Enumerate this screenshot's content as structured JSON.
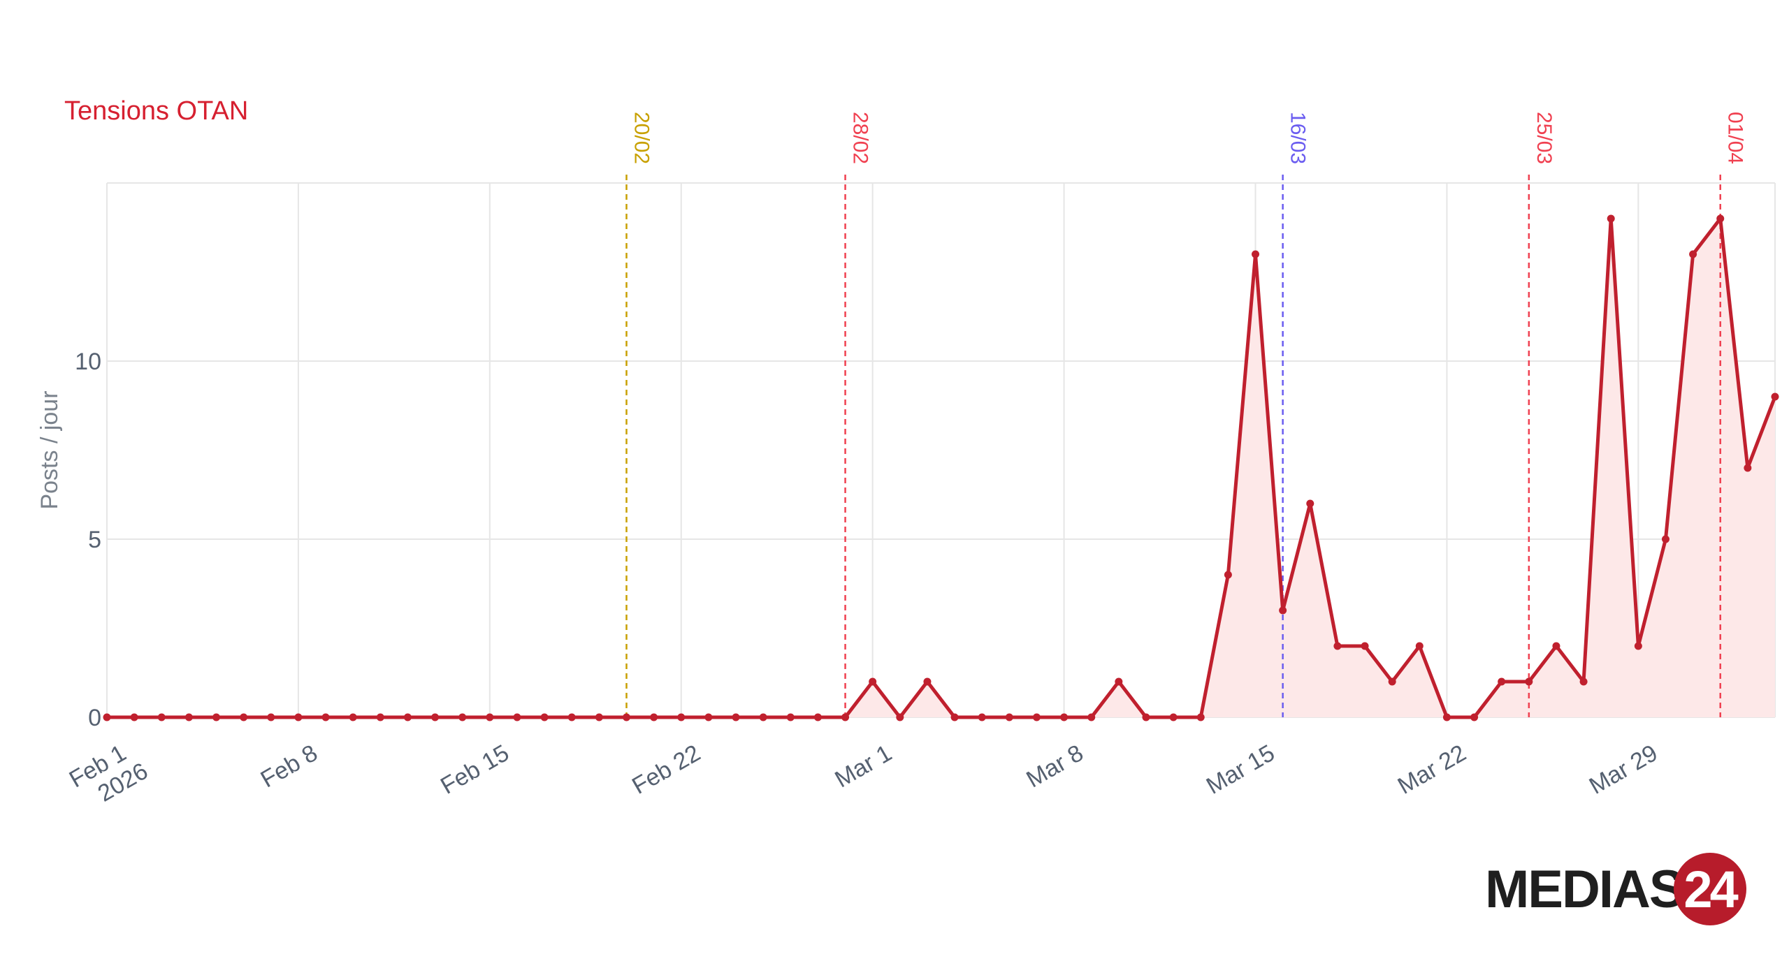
{
  "series_title": "Tensions OTAN",
  "logo": {
    "text": "MEDIAS",
    "number": "24"
  },
  "colors": {
    "line": "#c0202e",
    "fill": "#fde8e8",
    "grid": "#e6e6e6",
    "axis_text": "#556070",
    "title": "#d62030"
  },
  "chart_data": {
    "type": "line",
    "x_start": "2026-02-01",
    "x_end": "2026-04-03",
    "xlim": [
      "2026-02-01",
      "2026-04-03"
    ],
    "ylabel": "Posts / jour",
    "ylim": [
      0,
      15
    ],
    "yticks": [
      0,
      5,
      10
    ],
    "grid": true,
    "area_fill": true,
    "x_ticks": [
      {
        "date": "2026-02-01",
        "label": "Feb 1",
        "label2": "2026"
      },
      {
        "date": "2026-02-08",
        "label": "Feb 8",
        "label2": ""
      },
      {
        "date": "2026-02-15",
        "label": "Feb 15",
        "label2": ""
      },
      {
        "date": "2026-02-22",
        "label": "Feb 22",
        "label2": ""
      },
      {
        "date": "2026-03-01",
        "label": "Mar 1",
        "label2": ""
      },
      {
        "date": "2026-03-08",
        "label": "Mar 8",
        "label2": ""
      },
      {
        "date": "2026-03-15",
        "label": "Mar 15",
        "label2": ""
      },
      {
        "date": "2026-03-22",
        "label": "Mar 22",
        "label2": ""
      },
      {
        "date": "2026-03-29",
        "label": "Mar 29",
        "label2": ""
      }
    ],
    "series": [
      {
        "name": "Tensions OTAN",
        "x": [
          "2026-02-01",
          "2026-02-02",
          "2026-02-03",
          "2026-02-04",
          "2026-02-05",
          "2026-02-06",
          "2026-02-07",
          "2026-02-08",
          "2026-02-09",
          "2026-02-10",
          "2026-02-11",
          "2026-02-12",
          "2026-02-13",
          "2026-02-14",
          "2026-02-15",
          "2026-02-16",
          "2026-02-17",
          "2026-02-18",
          "2026-02-19",
          "2026-02-20",
          "2026-02-21",
          "2026-02-22",
          "2026-02-23",
          "2026-02-24",
          "2026-02-25",
          "2026-02-26",
          "2026-02-27",
          "2026-02-28",
          "2026-03-01",
          "2026-03-02",
          "2026-03-03",
          "2026-03-04",
          "2026-03-05",
          "2026-03-06",
          "2026-03-07",
          "2026-03-08",
          "2026-03-09",
          "2026-03-10",
          "2026-03-11",
          "2026-03-12",
          "2026-03-13",
          "2026-03-14",
          "2026-03-15",
          "2026-03-16",
          "2026-03-17",
          "2026-03-18",
          "2026-03-19",
          "2026-03-20",
          "2026-03-21",
          "2026-03-22",
          "2026-03-23",
          "2026-03-24",
          "2026-03-25",
          "2026-03-26",
          "2026-03-27",
          "2026-03-28",
          "2026-03-29",
          "2026-03-30",
          "2026-03-31",
          "2026-04-01",
          "2026-04-02",
          "2026-04-03"
        ],
        "values": [
          0,
          0,
          0,
          0,
          0,
          0,
          0,
          0,
          0,
          0,
          0,
          0,
          0,
          0,
          0,
          0,
          0,
          0,
          0,
          0,
          0,
          0,
          0,
          0,
          0,
          0,
          0,
          0,
          1,
          0,
          1,
          0,
          0,
          0,
          0,
          0,
          0,
          1,
          0,
          0,
          0,
          4,
          13,
          3,
          6,
          2,
          2,
          1,
          2,
          0,
          0,
          1,
          1,
          2,
          1,
          14,
          2,
          5,
          13,
          14,
          7,
          9
        ]
      }
    ],
    "annotations": [
      {
        "date": "2026-02-20",
        "label": "20/02",
        "color": "#c8a000"
      },
      {
        "date": "2026-02-28",
        "label": "28/02",
        "color": "#f04050"
      },
      {
        "date": "2026-03-16",
        "label": "16/03",
        "color": "#6a5cf0"
      },
      {
        "date": "2026-03-25",
        "label": "25/03",
        "color": "#f04050"
      },
      {
        "date": "2026-04-01",
        "label": "01/04",
        "color": "#f04050"
      }
    ]
  }
}
